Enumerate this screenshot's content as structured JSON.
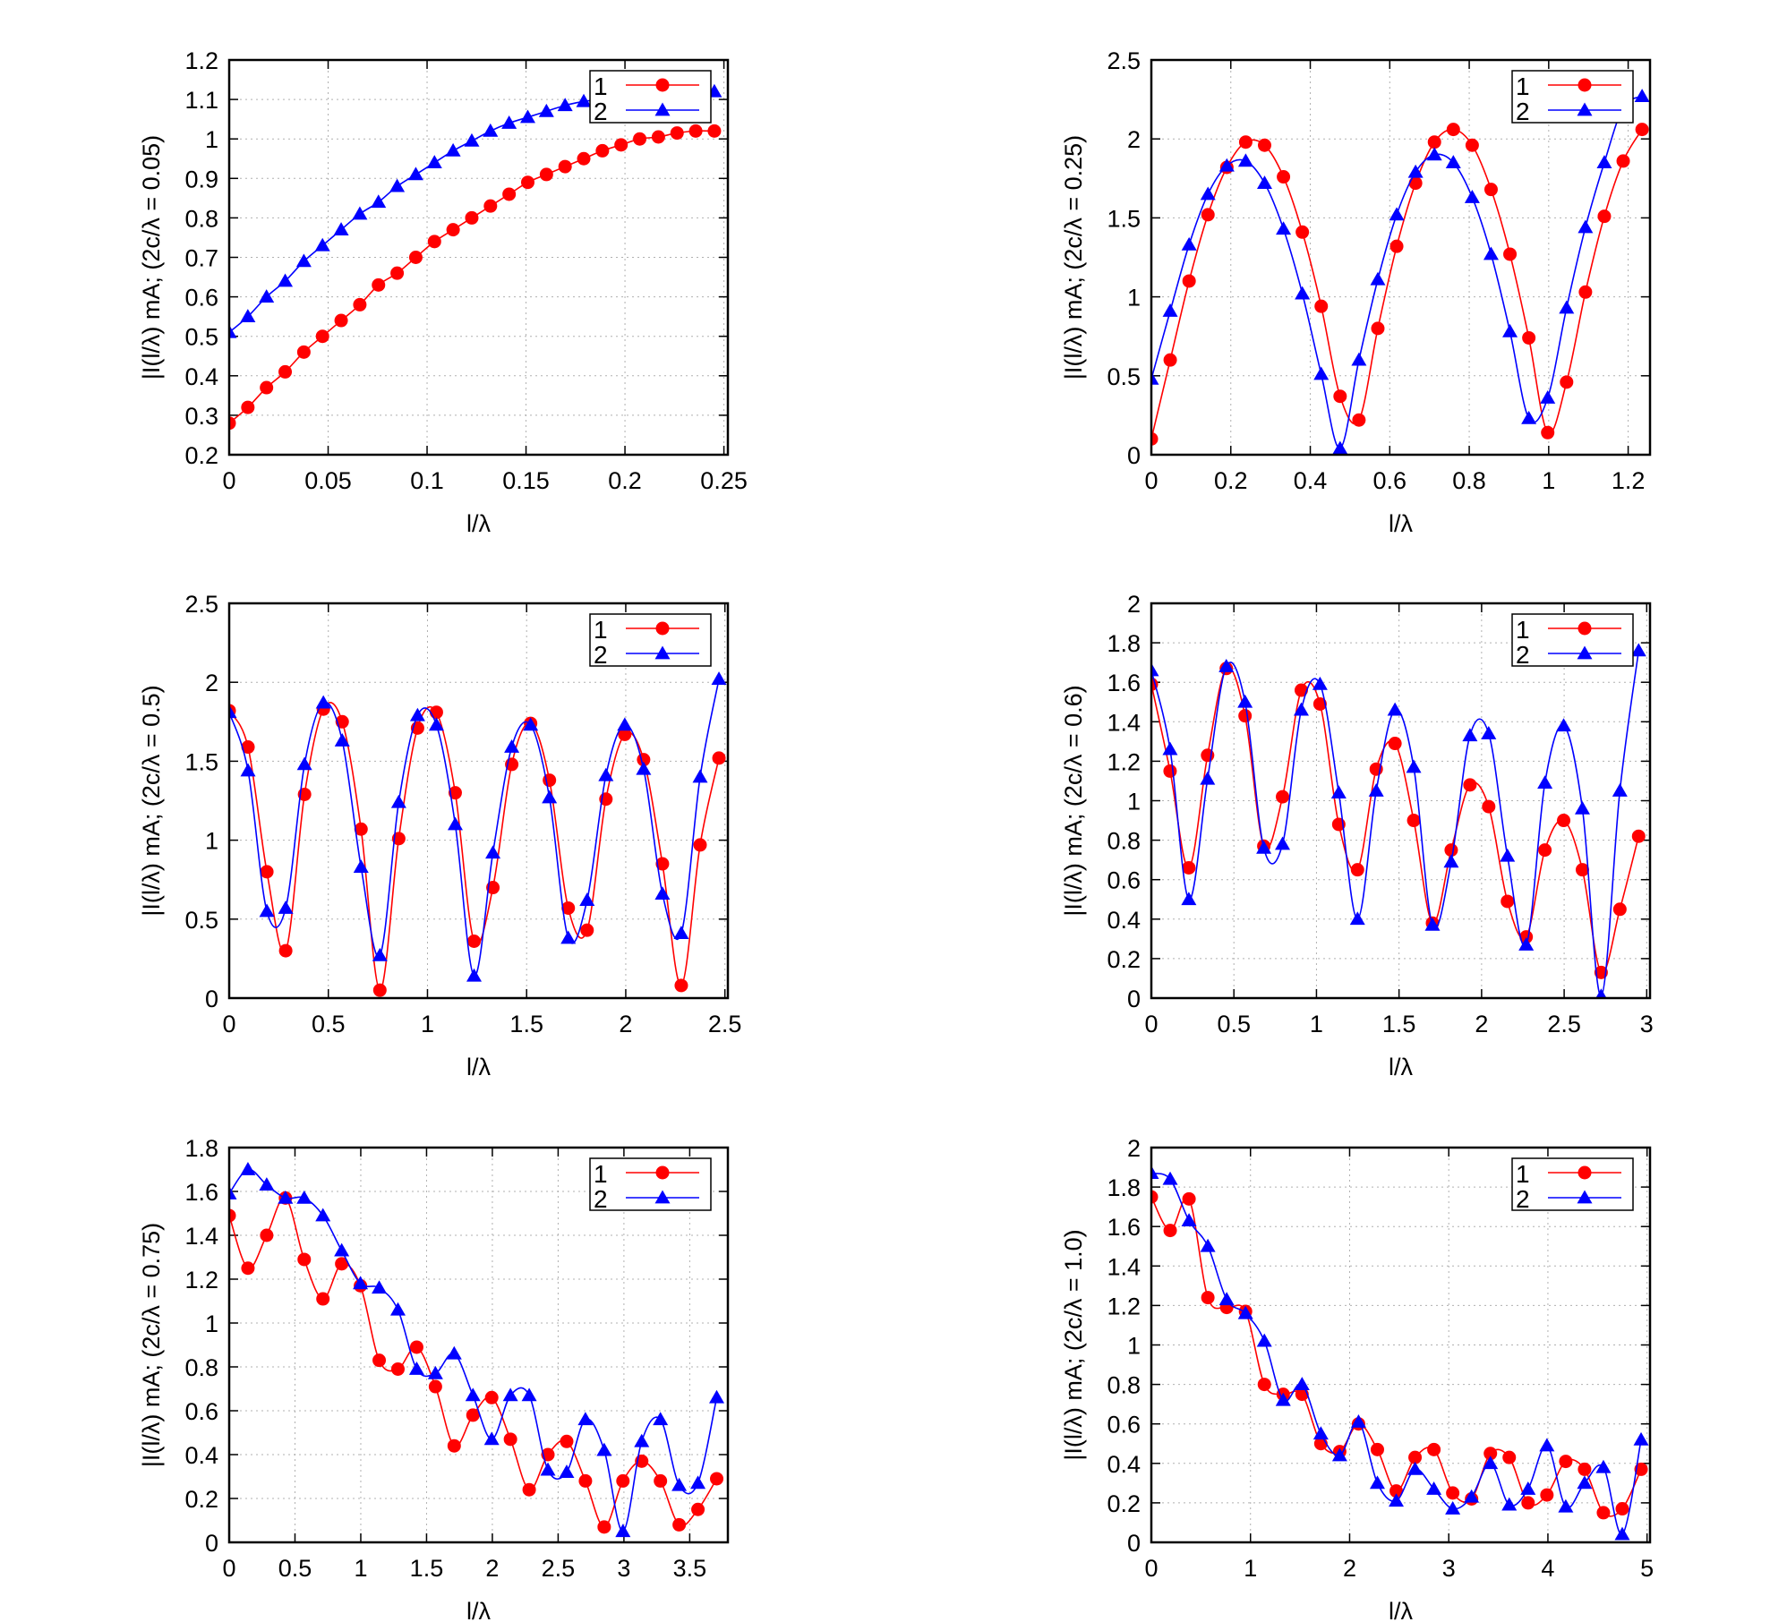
{
  "colors": {
    "series1": "#ff0000",
    "series2": "#0000ff",
    "grid": "#b0b0b0"
  },
  "chart_data": [
    {
      "type": "line",
      "xlabel": "l/λ",
      "ylabel": "|I(l/λ) mA; (2c/λ = 0.05)",
      "xlim": [
        0,
        0.252
      ],
      "ylim": [
        0.2,
        1.2
      ],
      "xticks": [
        "0",
        "0.05",
        "0.1",
        "0.15",
        "0.2",
        "0.25"
      ],
      "xtick_values": [
        0,
        0.05,
        0.1,
        0.15,
        0.2,
        0.25
      ],
      "yticks": [
        "0.2",
        "0.3",
        "0.4",
        "0.5",
        "0.6",
        "0.7",
        "0.8",
        "0.9",
        "1",
        "1.1",
        "1.2"
      ],
      "ytick_values": [
        0.2,
        0.3,
        0.4,
        0.5,
        0.6,
        0.7,
        0.8,
        0.9,
        1,
        1.1,
        1.2
      ],
      "grid": true,
      "legend": "top-right",
      "x_step": 0.00943,
      "series": [
        {
          "name": "1",
          "marker": "circle",
          "values": [
            0.28,
            0.32,
            0.37,
            0.41,
            0.46,
            0.5,
            0.54,
            0.58,
            0.63,
            0.66,
            0.7,
            0.74,
            0.77,
            0.8,
            0.83,
            0.86,
            0.89,
            0.91,
            0.93,
            0.95,
            0.97,
            0.985,
            1.0,
            1.005,
            1.015,
            1.02,
            1.02
          ]
        },
        {
          "name": "2",
          "marker": "triangle",
          "values": [
            0.51,
            0.55,
            0.6,
            0.64,
            0.69,
            0.73,
            0.77,
            0.81,
            0.84,
            0.88,
            0.91,
            0.94,
            0.97,
            0.995,
            1.02,
            1.04,
            1.055,
            1.07,
            1.085,
            1.095,
            1.1,
            1.105,
            1.11,
            1.115,
            1.115,
            1.12,
            1.12
          ]
        }
      ]
    },
    {
      "type": "line",
      "xlabel": "l/λ",
      "ylabel": "|I(l/λ) mA; (2c/λ = 0.25)",
      "xlim": [
        0,
        1.255
      ],
      "ylim": [
        0,
        2.5
      ],
      "xticks": [
        "0",
        "0.2",
        "0.4",
        "0.6",
        "0.8",
        "1",
        "1.2"
      ],
      "xtick_values": [
        0,
        0.2,
        0.4,
        0.6,
        0.8,
        1,
        1.2
      ],
      "yticks": [
        "0",
        "0.5",
        "1",
        "1.5",
        "2",
        "2.5"
      ],
      "ytick_values": [
        0,
        0.5,
        1,
        1.5,
        2,
        2.5
      ],
      "grid": true,
      "legend": "top-right",
      "x_step": 0.0475,
      "series": [
        {
          "name": "1",
          "marker": "circle",
          "values": [
            0.1,
            0.6,
            1.1,
            1.52,
            1.82,
            1.98,
            1.96,
            1.76,
            1.41,
            0.94,
            0.37,
            0.22,
            0.8,
            1.32,
            1.72,
            1.98,
            2.06,
            1.96,
            1.68,
            1.27,
            0.74,
            0.14,
            0.46,
            1.03,
            1.51,
            1.86,
            2.06
          ]
        },
        {
          "name": "2",
          "marker": "triangle",
          "values": [
            0.48,
            0.91,
            1.33,
            1.65,
            1.83,
            1.86,
            1.72,
            1.43,
            1.02,
            0.51,
            0.04,
            0.6,
            1.11,
            1.52,
            1.79,
            1.9,
            1.85,
            1.63,
            1.27,
            0.78,
            0.23,
            0.36,
            0.93,
            1.44,
            1.85,
            2.2,
            2.27
          ]
        }
      ]
    },
    {
      "type": "line",
      "xlabel": "l/λ",
      "ylabel": "|I(l/λ) mA; (2c/λ = 0.5)",
      "xlim": [
        0,
        2.515
      ],
      "ylim": [
        0,
        2.5
      ],
      "xticks": [
        "0",
        "0.5",
        "1",
        "1.5",
        "2",
        "2.5"
      ],
      "xtick_values": [
        0,
        0.5,
        1,
        1.5,
        2,
        2.5
      ],
      "yticks": [
        "0",
        "0.5",
        "1",
        "1.5",
        "2",
        "2.5"
      ],
      "ytick_values": [
        0,
        0.5,
        1,
        1.5,
        2,
        2.5
      ],
      "grid": true,
      "legend": "top-right",
      "x_step": 0.095,
      "series": [
        {
          "name": "1",
          "marker": "circle",
          "values": [
            1.82,
            1.59,
            0.8,
            0.3,
            1.29,
            1.83,
            1.75,
            1.07,
            0.05,
            1.01,
            1.71,
            1.81,
            1.3,
            0.36,
            0.7,
            1.48,
            1.74,
            1.38,
            0.57,
            0.43,
            1.26,
            1.67,
            1.51,
            0.85,
            0.08,
            0.97,
            1.52
          ]
        },
        {
          "name": "2",
          "marker": "triangle",
          "values": [
            1.81,
            1.44,
            0.55,
            0.57,
            1.48,
            1.87,
            1.63,
            0.83,
            0.27,
            1.24,
            1.79,
            1.73,
            1.1,
            0.14,
            0.92,
            1.59,
            1.73,
            1.27,
            0.38,
            0.62,
            1.41,
            1.73,
            1.45,
            0.66,
            0.41,
            1.4,
            2.02
          ]
        }
      ]
    },
    {
      "type": "line",
      "xlabel": "l/λ",
      "ylabel": "|I(l/λ) mA; (2c/λ = 0.6)",
      "xlim": [
        0,
        3.02
      ],
      "ylim": [
        0,
        2
      ],
      "xticks": [
        "0",
        "0.5",
        "1",
        "1.5",
        "2",
        "2.5",
        "3"
      ],
      "xtick_values": [
        0,
        0.5,
        1,
        1.5,
        2,
        2.5,
        3
      ],
      "yticks": [
        "0",
        "0.2",
        "0.4",
        "0.6",
        "0.8",
        "1",
        "1.2",
        "1.4",
        "1.6",
        "1.8",
        "2"
      ],
      "ytick_values": [
        0,
        0.2,
        0.4,
        0.6,
        0.8,
        1,
        1.2,
        1.4,
        1.6,
        1.8,
        2
      ],
      "grid": true,
      "legend": "top-right",
      "x_step": 0.1135,
      "series": [
        {
          "name": "1",
          "marker": "circle",
          "values": [
            1.59,
            1.15,
            0.66,
            1.23,
            1.67,
            1.43,
            0.77,
            1.02,
            1.56,
            1.49,
            0.88,
            0.65,
            1.16,
            1.29,
            0.9,
            0.38,
            0.75,
            1.08,
            0.97,
            0.49,
            0.31,
            0.75,
            0.9,
            0.65,
            0.13,
            0.45,
            0.82
          ]
        },
        {
          "name": "2",
          "marker": "triangle",
          "values": [
            1.66,
            1.26,
            0.5,
            1.11,
            1.68,
            1.5,
            0.76,
            0.78,
            1.46,
            1.59,
            1.04,
            0.4,
            1.05,
            1.46,
            1.17,
            0.37,
            0.69,
            1.33,
            1.34,
            0.72,
            0.27,
            1.09,
            1.38,
            0.96,
            0.01,
            1.05,
            1.76
          ]
        }
      ]
    },
    {
      "type": "line",
      "xlabel": "l/λ",
      "ylabel": "|I(l/λ) mA; (2c/λ = 0.75)",
      "xlim": [
        0,
        3.79
      ],
      "ylim": [
        0,
        1.8
      ],
      "xticks": [
        "0",
        "0.5",
        "1",
        "1.5",
        "2",
        "2.5",
        "3",
        "3.5"
      ],
      "xtick_values": [
        0,
        0.5,
        1,
        1.5,
        2,
        2.5,
        3,
        3.5
      ],
      "yticks": [
        "0",
        "0.2",
        "0.4",
        "0.6",
        "0.8",
        "1",
        "1.2",
        "1.4",
        "1.6",
        "1.8"
      ],
      "ytick_values": [
        0,
        0.2,
        0.4,
        0.6,
        0.8,
        1,
        1.2,
        1.4,
        1.6,
        1.8
      ],
      "grid": true,
      "legend": "top-right",
      "x_step": 0.1425,
      "series": [
        {
          "name": "1",
          "marker": "circle",
          "values": [
            1.49,
            1.25,
            1.4,
            1.57,
            1.29,
            1.11,
            1.27,
            1.17,
            0.83,
            0.79,
            0.89,
            0.71,
            0.44,
            0.58,
            0.66,
            0.47,
            0.24,
            0.4,
            0.46,
            0.28,
            0.07,
            0.28,
            0.37,
            0.28,
            0.08,
            0.15,
            0.29
          ]
        },
        {
          "name": "2",
          "marker": "triangle",
          "values": [
            1.59,
            1.7,
            1.63,
            1.57,
            1.57,
            1.49,
            1.33,
            1.18,
            1.16,
            1.06,
            0.79,
            0.77,
            0.86,
            0.67,
            0.47,
            0.67,
            0.67,
            0.33,
            0.32,
            0.56,
            0.42,
            0.05,
            0.46,
            0.56,
            0.26,
            0.27,
            0.66
          ]
        }
      ]
    },
    {
      "type": "line",
      "xlabel": "l/λ",
      "ylabel": "|I(l/λ) mA; (2c/λ = 1.0)",
      "xlim": [
        0,
        5.03
      ],
      "ylim": [
        0,
        2
      ],
      "xticks": [
        "0",
        "1",
        "2",
        "3",
        "4",
        "5"
      ],
      "xtick_values": [
        0,
        1,
        2,
        3,
        4,
        5
      ],
      "yticks": [
        "0",
        "0.2",
        "0.4",
        "0.6",
        "0.8",
        "1",
        "1.2",
        "1.4",
        "1.6",
        "1.8",
        "2"
      ],
      "ytick_values": [
        0,
        0.2,
        0.4,
        0.6,
        0.8,
        1,
        1.2,
        1.4,
        1.6,
        1.8,
        2
      ],
      "grid": true,
      "legend": "top-right",
      "x_step": 0.19,
      "series": [
        {
          "name": "1",
          "marker": "circle",
          "values": [
            1.75,
            1.58,
            1.74,
            1.24,
            1.19,
            1.17,
            0.8,
            0.75,
            0.75,
            0.5,
            0.46,
            0.6,
            0.47,
            0.26,
            0.43,
            0.47,
            0.25,
            0.22,
            0.45,
            0.43,
            0.2,
            0.24,
            0.41,
            0.37,
            0.15,
            0.17,
            0.37
          ]
        },
        {
          "name": "2",
          "marker": "triangle",
          "values": [
            1.87,
            1.84,
            1.63,
            1.5,
            1.23,
            1.16,
            1.02,
            0.72,
            0.8,
            0.55,
            0.44,
            0.61,
            0.3,
            0.21,
            0.37,
            0.27,
            0.17,
            0.23,
            0.4,
            0.19,
            0.27,
            0.49,
            0.18,
            0.3,
            0.38,
            0.04,
            0.52
          ]
        }
      ]
    }
  ]
}
